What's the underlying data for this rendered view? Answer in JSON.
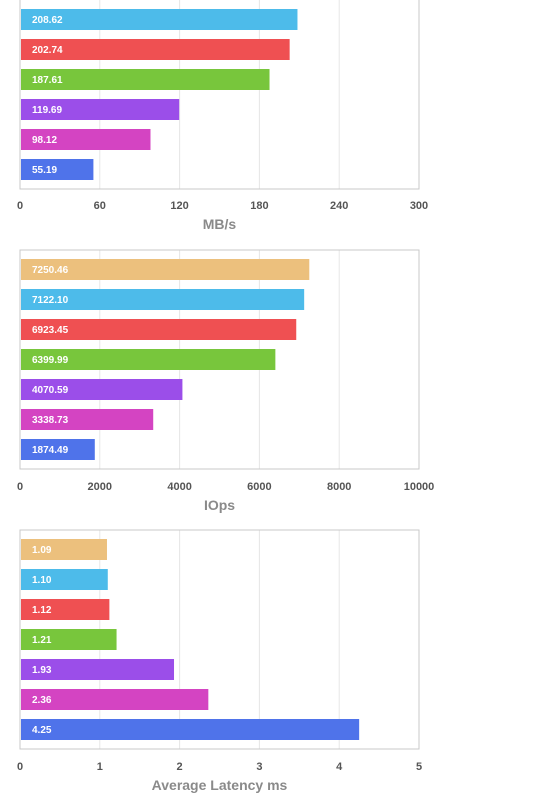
{
  "chart_data": [
    {
      "type": "bar",
      "orientation": "horizontal",
      "values": [
        208.62,
        202.74,
        187.61,
        119.69,
        98.12,
        55.19
      ],
      "labels": [
        "208.62",
        "202.74",
        "187.61",
        "119.69",
        "98.12",
        "55.19"
      ],
      "colors": [
        "#4dbbea",
        "#ef5052",
        "#78c63c",
        "#9b4ee9",
        "#d444c2",
        "#4f73ea"
      ],
      "xlabel": "MB/s",
      "xlim": [
        0,
        300
      ],
      "xticks": [
        "0",
        "60",
        "120",
        "180",
        "240",
        "300"
      ],
      "grid": true
    },
    {
      "type": "bar",
      "orientation": "horizontal",
      "values": [
        7250.46,
        7122.1,
        6923.45,
        6399.99,
        4070.59,
        3338.73,
        1874.49
      ],
      "labels": [
        "7250.46",
        "7122.10",
        "6923.45",
        "6399.99",
        "4070.59",
        "3338.73",
        "1874.49"
      ],
      "colors": [
        "#ecc07d",
        "#4dbbea",
        "#ef5052",
        "#78c63c",
        "#9b4ee9",
        "#d444c2",
        "#4f73ea"
      ],
      "xlabel": "IOps",
      "xlim": [
        0,
        10000
      ],
      "xticks": [
        "0",
        "2000",
        "4000",
        "6000",
        "8000",
        "10000"
      ],
      "grid": true
    },
    {
      "type": "bar",
      "orientation": "horizontal",
      "values": [
        1.09,
        1.1,
        1.12,
        1.21,
        1.93,
        2.36,
        4.25
      ],
      "labels": [
        "1.09",
        "1.10",
        "1.12",
        "1.21",
        "1.93",
        "2.36",
        "4.25"
      ],
      "colors": [
        "#ecc07d",
        "#4dbbea",
        "#ef5052",
        "#78c63c",
        "#9b4ee9",
        "#d444c2",
        "#4f73ea"
      ],
      "xlabel": "Average Latency ms",
      "xlim": [
        0,
        5
      ],
      "xticks": [
        "0",
        "1",
        "2",
        "3",
        "4",
        "5"
      ],
      "grid": true
    }
  ]
}
